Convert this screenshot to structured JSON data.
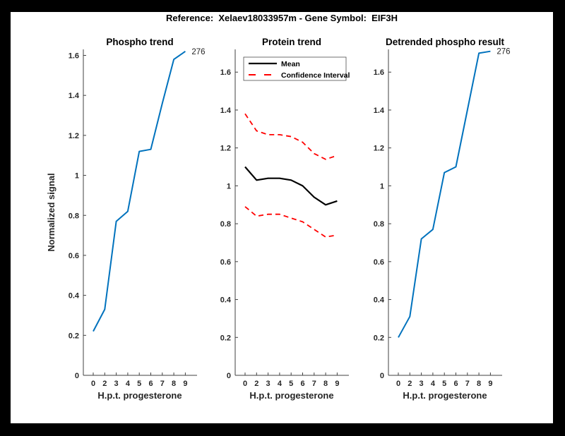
{
  "header": {
    "title": "Reference:  Xelaev18033957m - Gene Symbol:  EIF3H"
  },
  "figure": {
    "background": "#ffffff",
    "border_color": "#000000",
    "axis_color": "#404040",
    "tick_text_color": "#262626"
  },
  "axis": {
    "xlabel": "H.p.t. progesterone",
    "ylabel": "Normalized signal",
    "x_tick_labels": [
      "0",
      "2",
      "3",
      "4",
      "5",
      "6",
      "7",
      "8",
      "9"
    ],
    "y_ticks": [
      0,
      0.2,
      0.4,
      0.6,
      0.8,
      1,
      1.2,
      1.4,
      1.6
    ],
    "y_tick_labels": [
      "0",
      "0.2",
      "0.4",
      "0.6",
      "0.8",
      "1",
      "1.2",
      "1.4",
      "1.6"
    ]
  },
  "chart_data": [
    {
      "type": "line",
      "title": "Phospho trend",
      "xlabel": "H.p.t. progesterone",
      "ylabel": "Normalized signal",
      "x_tick_labels": [
        "0",
        "2",
        "3",
        "4",
        "5",
        "6",
        "7",
        "8",
        "9"
      ],
      "ylim": [
        0,
        1.63
      ],
      "end_label": "276",
      "series": [
        {
          "name": "Phospho",
          "data_name": "phospho-trend-line",
          "color": "#0072BD",
          "style": "solid",
          "width": 2,
          "values": [
            0.22,
            0.33,
            0.77,
            0.82,
            1.12,
            1.13,
            1.36,
            1.58,
            1.62
          ]
        }
      ]
    },
    {
      "type": "line",
      "title": "Protein trend",
      "xlabel": "H.p.t. progesterone",
      "ylabel": "",
      "x_tick_labels": [
        "0",
        "2",
        "3",
        "4",
        "5",
        "6",
        "7",
        "8",
        "9"
      ],
      "ylim": [
        0,
        1.72
      ],
      "legend": {
        "position": "top-left",
        "entries": [
          {
            "label": "Mean",
            "color": "#000000",
            "style": "solid"
          },
          {
            "label": "Confidence Interval",
            "color": "#FF0000",
            "style": "dashed"
          }
        ]
      },
      "series": [
        {
          "name": "Mean",
          "data_name": "protein-mean-line",
          "color": "#000000",
          "style": "solid",
          "width": 2.2,
          "values": [
            1.1,
            1.03,
            1.04,
            1.04,
            1.03,
            1.0,
            0.94,
            0.9,
            0.92
          ]
        },
        {
          "name": "Confidence Interval upper",
          "data_name": "ci-upper-line",
          "color": "#FF0000",
          "style": "dashed",
          "width": 1.8,
          "values": [
            1.38,
            1.29,
            1.27,
            1.27,
            1.26,
            1.23,
            1.17,
            1.14,
            1.16
          ]
        },
        {
          "name": "Confidence Interval lower",
          "data_name": "ci-lower-line",
          "color": "#FF0000",
          "style": "dashed",
          "width": 1.8,
          "values": [
            0.89,
            0.84,
            0.85,
            0.85,
            0.83,
            0.81,
            0.77,
            0.73,
            0.74
          ]
        }
      ]
    },
    {
      "type": "line",
      "title": "Detrended phospho result",
      "xlabel": "H.p.t. progesterone",
      "ylabel": "",
      "x_tick_labels": [
        "0",
        "2",
        "3",
        "4",
        "5",
        "6",
        "7",
        "8",
        "9"
      ],
      "ylim": [
        0,
        1.72
      ],
      "end_label": "276",
      "series": [
        {
          "name": "Detrended phospho",
          "data_name": "detrended-phospho-line",
          "color": "#0072BD",
          "style": "solid",
          "width": 2,
          "values": [
            0.2,
            0.31,
            0.72,
            0.77,
            1.07,
            1.1,
            1.4,
            1.7,
            1.71
          ]
        }
      ]
    }
  ]
}
